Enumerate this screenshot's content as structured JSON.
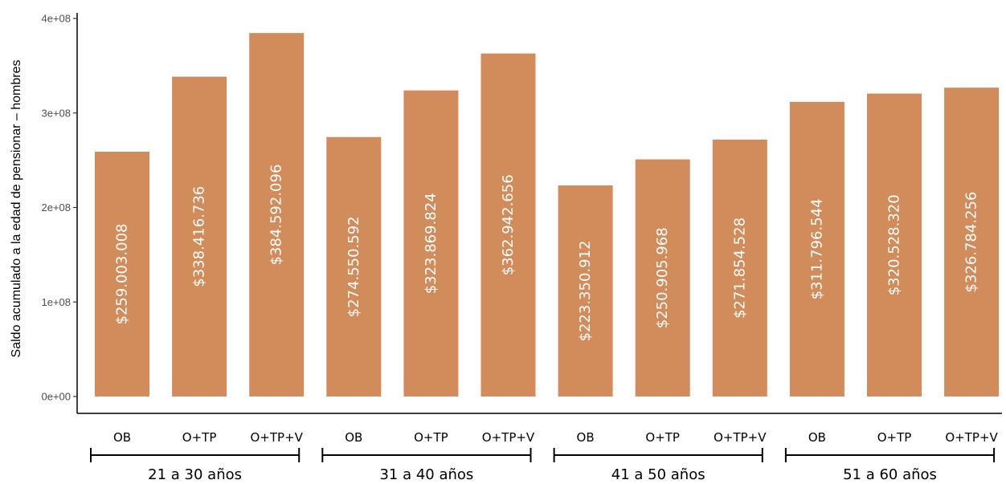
{
  "chart_data": {
    "type": "bar",
    "ylabel": "Saldo acumulado a la edad de pensionar – hombres",
    "xlabel": "",
    "ylim": [
      0,
      400000000
    ],
    "yticks": [
      0,
      100000000,
      200000000,
      300000000,
      400000000
    ],
    "ytick_labels": [
      "0e+00",
      "1e+08",
      "2e+08",
      "3e+08",
      "4e+08"
    ],
    "grid": false,
    "bar_color": "#d28c5c",
    "groups": [
      {
        "label": "21 a 30 años",
        "bars": [
          {
            "category": "OB",
            "value": 259003008,
            "label": "$259.003.008"
          },
          {
            "category": "O+TP",
            "value": 338416736,
            "label": "$338.416.736"
          },
          {
            "category": "O+TP+V",
            "value": 384592096,
            "label": "$384.592.096"
          }
        ]
      },
      {
        "label": "31 a 40 años",
        "bars": [
          {
            "category": "OB",
            "value": 274550592,
            "label": "$274.550.592"
          },
          {
            "category": "O+TP",
            "value": 323869824,
            "label": "$323.869.824"
          },
          {
            "category": "O+TP+V",
            "value": 362942656,
            "label": "$362.942.656"
          }
        ]
      },
      {
        "label": "41 a 50 años",
        "bars": [
          {
            "category": "OB",
            "value": 223350912,
            "label": "$223.350.912"
          },
          {
            "category": "O+TP",
            "value": 250905968,
            "label": "$250.905.968"
          },
          {
            "category": "O+TP+V",
            "value": 271854528,
            "label": "$271.854.528"
          }
        ]
      },
      {
        "label": "51 a 60 años",
        "bars": [
          {
            "category": "OB",
            "value": 311796544,
            "label": "$311.796.544"
          },
          {
            "category": "O+TP",
            "value": 320528320,
            "label": "$320.528.320"
          },
          {
            "category": "O+TP+V",
            "value": 326784256,
            "label": "$326.784.256"
          }
        ]
      }
    ]
  }
}
